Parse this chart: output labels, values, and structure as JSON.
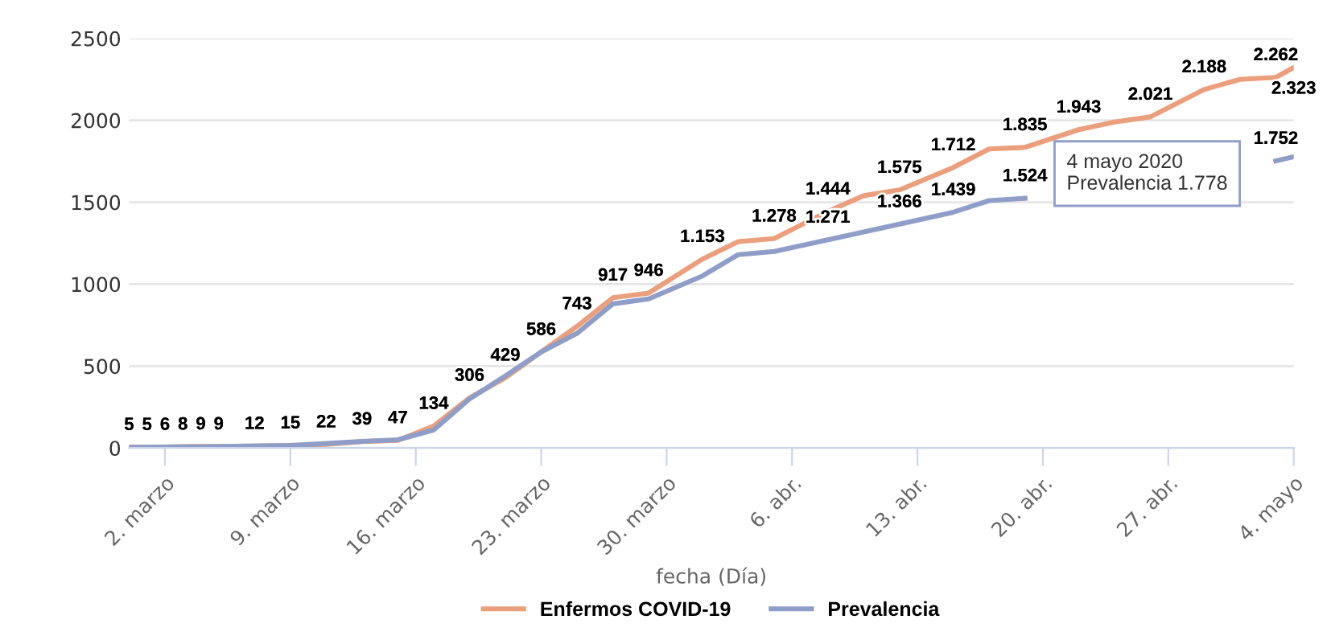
{
  "chart_data": {
    "type": "line",
    "xlabel": "fecha (Día)",
    "ylim": [
      0,
      2500
    ],
    "yticks": [
      0,
      500,
      1000,
      1500,
      2000,
      2500
    ],
    "xlim": [
      "2020-02-29",
      "2020-05-04"
    ],
    "xticks": [
      {
        "value": "2020-03-02",
        "label": "2. marzo"
      },
      {
        "value": "2020-03-09",
        "label": "9. marzo"
      },
      {
        "value": "2020-03-16",
        "label": "16. marzo"
      },
      {
        "value": "2020-03-23",
        "label": "23. marzo"
      },
      {
        "value": "2020-03-30",
        "label": "30. marzo"
      },
      {
        "value": "2020-04-06",
        "label": "6. abr."
      },
      {
        "value": "2020-04-13",
        "label": "13. abr."
      },
      {
        "value": "2020-04-20",
        "label": "20. abr."
      },
      {
        "value": "2020-04-27",
        "label": "27. abr."
      },
      {
        "value": "2020-05-04",
        "label": "4. mayo"
      }
    ],
    "grid": "y",
    "legend": "bottom",
    "marker": "none",
    "line_style": "solid",
    "series": [
      {
        "name": "Enfermos COVID-19",
        "color": "#eb9f7c",
        "x": [
          "2020-02-29",
          "2020-03-01",
          "2020-03-02",
          "2020-03-03",
          "2020-03-04",
          "2020-03-05",
          "2020-03-07",
          "2020-03-09",
          "2020-03-11",
          "2020-03-13",
          "2020-03-15",
          "2020-03-17",
          "2020-03-19",
          "2020-03-21",
          "2020-03-23",
          "2020-03-25",
          "2020-03-27",
          "2020-03-29",
          "2020-04-01",
          "2020-04-03",
          "2020-04-05",
          "2020-04-08",
          "2020-04-10",
          "2020-04-12",
          "2020-04-15",
          "2020-04-17",
          "2020-04-19",
          "2020-04-22",
          "2020-04-24",
          "2020-04-26",
          "2020-04-29",
          "2020-05-01",
          "2020-05-03",
          "2020-05-04"
        ],
        "values": [
          5,
          5,
          6,
          8,
          9,
          9,
          12,
          15,
          22,
          39,
          47,
          134,
          306,
          429,
          586,
          743,
          917,
          946,
          1153,
          1260,
          1278,
          1444,
          1540,
          1575,
          1712,
          1825,
          1835,
          1943,
          1990,
          2021,
          2188,
          2250,
          2262,
          2323
        ],
        "value_labels": [
          "5",
          "5",
          "6",
          "8",
          "9",
          "9",
          "12",
          "15",
          "22",
          "39",
          "47",
          "134",
          "306",
          "429",
          "586",
          "743",
          "917",
          "946",
          "1.153",
          null,
          "1.278",
          "1.444",
          null,
          "1.575",
          "1.712",
          null,
          "1.835",
          "1.943",
          null,
          "2.021",
          "2.188",
          null,
          "2.262",
          "2.323"
        ]
      },
      {
        "name": "Prevalencia",
        "color": "#8f9ec8",
        "x": [
          "2020-02-29",
          "2020-03-05",
          "2020-03-09",
          "2020-03-13",
          "2020-03-15",
          "2020-03-17",
          "2020-03-19",
          "2020-03-21",
          "2020-03-23",
          "2020-03-25",
          "2020-03-27",
          "2020-03-29",
          "2020-04-01",
          "2020-04-03",
          "2020-04-05",
          "2020-04-08",
          "2020-04-12",
          "2020-04-15",
          "2020-04-17",
          "2020-04-19",
          "2020-04-21",
          "2020-04-22",
          "2020-05-01",
          "2020-05-03",
          "2020-05-04"
        ],
        "values": [
          5,
          9,
          15,
          40,
          50,
          110,
          300,
          440,
          586,
          700,
          880,
          910,
          1050,
          1180,
          1200,
          1271,
          1366,
          1439,
          1510,
          1524,
          null,
          null,
          null,
          1752,
          1778
        ],
        "value_labels": [
          null,
          null,
          null,
          null,
          null,
          null,
          null,
          null,
          null,
          null,
          null,
          null,
          null,
          null,
          null,
          "1.271",
          "1.366",
          "1.439",
          null,
          "1.524",
          null,
          null,
          null,
          "1.752",
          null
        ]
      }
    ],
    "annotations": [
      "4 mayo 2020\nPrevalencia 1.778"
    ]
  }
}
